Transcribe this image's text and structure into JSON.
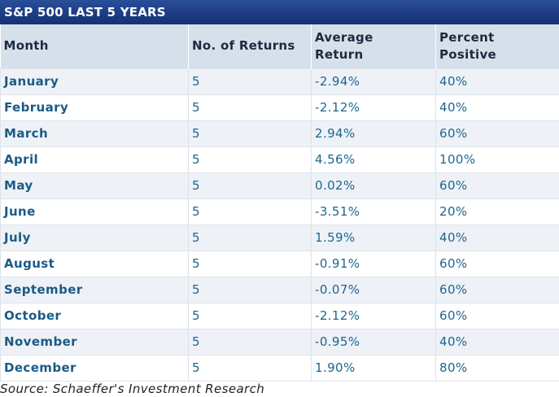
{
  "title": "S&P 500 LAST 5 YEARS",
  "headers": {
    "month": "Month",
    "returns": "No. of Returns",
    "avg_line1": "Average",
    "avg_line2": "Return",
    "pct_line1": "Percent",
    "pct_line2": "Positive"
  },
  "rows": [
    {
      "month": "January",
      "returns": "5",
      "avg": "-2.94%",
      "pct": "40%"
    },
    {
      "month": "February",
      "returns": "5",
      "avg": "-2.12%",
      "pct": "40%"
    },
    {
      "month": "March",
      "returns": "5",
      "avg": "2.94%",
      "pct": "60%"
    },
    {
      "month": "April",
      "returns": "5",
      "avg": "4.56%",
      "pct": "100%"
    },
    {
      "month": "May",
      "returns": "5",
      "avg": "0.02%",
      "pct": "60%"
    },
    {
      "month": "June",
      "returns": "5",
      "avg": "-3.51%",
      "pct": "20%"
    },
    {
      "month": "July",
      "returns": "5",
      "avg": "1.59%",
      "pct": "40%"
    },
    {
      "month": "August",
      "returns": "5",
      "avg": "-0.91%",
      "pct": "60%"
    },
    {
      "month": "September",
      "returns": "5",
      "avg": "-0.07%",
      "pct": "60%"
    },
    {
      "month": "October",
      "returns": "5",
      "avg": "-2.12%",
      "pct": "60%"
    },
    {
      "month": "November",
      "returns": "5",
      "avg": "-0.95%",
      "pct": "40%"
    },
    {
      "month": "December",
      "returns": "5",
      "avg": "1.90%",
      "pct": "80%"
    }
  ],
  "source": "Source: Schaeffer's Investment Research",
  "colors": {
    "title_bar": "#1c3c84",
    "header_bg": "#d5e0eb",
    "text_blue": "#1d6690",
    "row_alt": "#eef2f6"
  }
}
